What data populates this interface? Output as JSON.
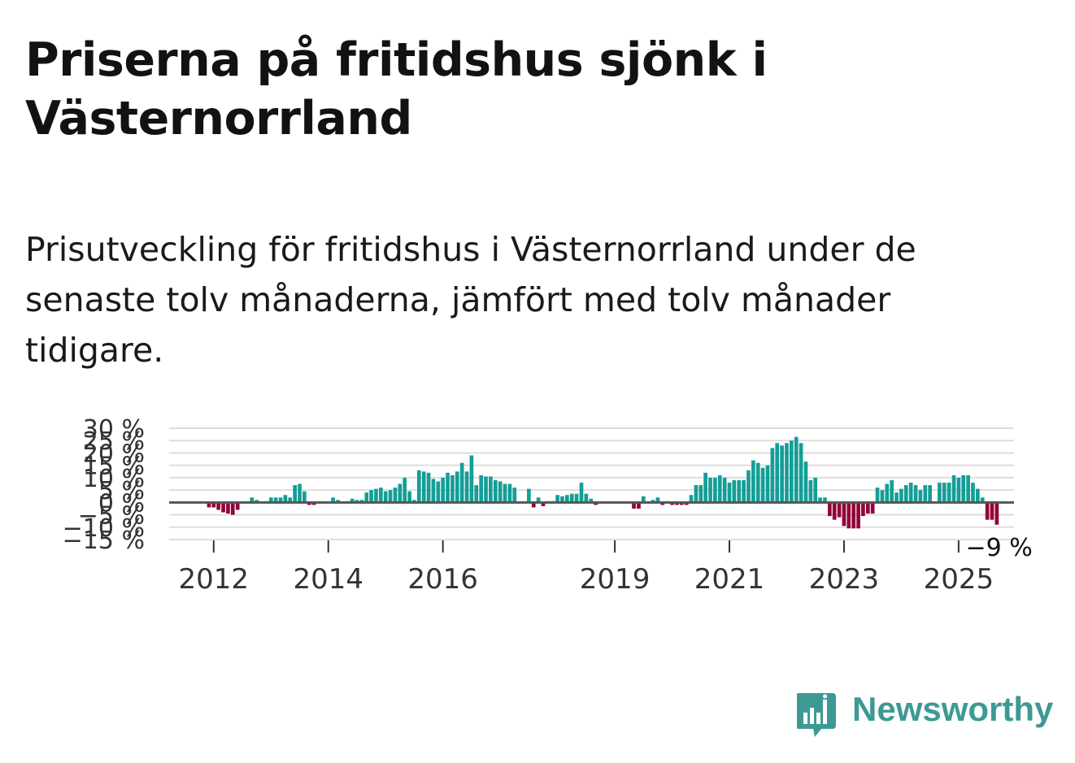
{
  "title": "Priserna på fritidshus sjönk i Västernorrland",
  "subtitle": "Prisutveckling för fritidshus i Västernorrland under de senaste tolv månaderna, jämfört med tolv månader tidigare.",
  "brand": {
    "name": "Newsworthy",
    "color": "#3d9a93",
    "icon": "bar-chart-logo-icon"
  },
  "colors": {
    "positive": "#149e96",
    "negative": "#93003a",
    "grid": "#dddddd",
    "zero_line": "#555555"
  },
  "chart_data": {
    "type": "bar",
    "title": "",
    "xlabel": "",
    "ylabel": "",
    "ylim": [
      -15,
      30
    ],
    "y_ticks": [
      "30 %",
      "25 %",
      "20 %",
      "15 %",
      "10 %",
      "5 %",
      "0 %",
      "−5 %",
      "−10 %",
      "−15 %"
    ],
    "y_tick_values": [
      30,
      25,
      20,
      15,
      10,
      5,
      0,
      -5,
      -10,
      -15
    ],
    "x_ticks": [
      "2012",
      "2014",
      "2016",
      "2019",
      "2021",
      "2023",
      "2025"
    ],
    "x_tick_values": [
      2012.0,
      2014.0,
      2016.0,
      2019.0,
      2021.0,
      2023.0,
      2025.0
    ],
    "x_start": 2011.0,
    "x_end": 2026.0,
    "grid": true,
    "last_label": "−9 %",
    "series": [
      {
        "values": [
          [
            2011.917,
            -2
          ],
          [
            2012.0,
            -2
          ],
          [
            2012.083,
            -3
          ],
          [
            2012.167,
            -4
          ],
          [
            2012.25,
            -4.5
          ],
          [
            2012.333,
            -5
          ],
          [
            2012.417,
            -3
          ],
          [
            2012.667,
            2
          ],
          [
            2012.75,
            1
          ],
          [
            2012.917,
            0.5
          ],
          [
            2013.0,
            2
          ],
          [
            2013.083,
            2
          ],
          [
            2013.167,
            2
          ],
          [
            2013.25,
            3
          ],
          [
            2013.333,
            2
          ],
          [
            2013.417,
            7
          ],
          [
            2013.5,
            7.5
          ],
          [
            2013.583,
            4.5
          ],
          [
            2013.667,
            -1
          ],
          [
            2013.75,
            -1
          ],
          [
            2014.0,
            0.5
          ],
          [
            2014.083,
            2
          ],
          [
            2014.167,
            1
          ],
          [
            2014.333,
            0.5
          ],
          [
            2014.417,
            1.5
          ],
          [
            2014.5,
            1
          ],
          [
            2014.583,
            1
          ],
          [
            2014.667,
            4
          ],
          [
            2014.75,
            5
          ],
          [
            2014.833,
            5.5
          ],
          [
            2014.917,
            6
          ],
          [
            2015.0,
            4.5
          ],
          [
            2015.083,
            5
          ],
          [
            2015.167,
            6
          ],
          [
            2015.25,
            7.5
          ],
          [
            2015.333,
            10
          ],
          [
            2015.417,
            4.5
          ],
          [
            2015.5,
            1
          ],
          [
            2015.583,
            13
          ],
          [
            2015.667,
            12.5
          ],
          [
            2015.75,
            12
          ],
          [
            2015.833,
            9.5
          ],
          [
            2015.917,
            8.5
          ],
          [
            2016.0,
            10
          ],
          [
            2016.083,
            12
          ],
          [
            2016.167,
            11
          ],
          [
            2016.25,
            12.5
          ],
          [
            2016.333,
            16
          ],
          [
            2016.417,
            12.5
          ],
          [
            2016.5,
            19
          ],
          [
            2016.583,
            7
          ],
          [
            2016.667,
            11
          ],
          [
            2016.75,
            10.5
          ],
          [
            2016.833,
            10.5
          ],
          [
            2016.917,
            9
          ],
          [
            2017.0,
            8.5
          ],
          [
            2017.083,
            7.5
          ],
          [
            2017.167,
            7.5
          ],
          [
            2017.25,
            6
          ],
          [
            2017.5,
            5.5
          ],
          [
            2017.583,
            -2
          ],
          [
            2017.667,
            2
          ],
          [
            2017.75,
            -1.5
          ],
          [
            2017.833,
            0.5
          ],
          [
            2017.917,
            0.5
          ],
          [
            2018.0,
            3
          ],
          [
            2018.083,
            2.5
          ],
          [
            2018.167,
            3
          ],
          [
            2018.25,
            3.5
          ],
          [
            2018.333,
            3.5
          ],
          [
            2018.417,
            8
          ],
          [
            2018.5,
            3.5
          ],
          [
            2018.583,
            1.5
          ],
          [
            2018.667,
            -1
          ],
          [
            2019.333,
            -2.5
          ],
          [
            2019.417,
            -2.5
          ],
          [
            2019.5,
            2.5
          ],
          [
            2019.667,
            1
          ],
          [
            2019.75,
            2
          ],
          [
            2019.833,
            -1
          ],
          [
            2019.917,
            0.5
          ],
          [
            2020.0,
            -1
          ],
          [
            2020.083,
            -1
          ],
          [
            2020.167,
            -1
          ],
          [
            2020.25,
            -1
          ],
          [
            2020.333,
            3
          ],
          [
            2020.417,
            7
          ],
          [
            2020.5,
            7
          ],
          [
            2020.583,
            12
          ],
          [
            2020.667,
            10
          ],
          [
            2020.75,
            10
          ],
          [
            2020.833,
            11
          ],
          [
            2020.917,
            10
          ],
          [
            2021.0,
            8
          ],
          [
            2021.083,
            9
          ],
          [
            2021.167,
            9
          ],
          [
            2021.25,
            9
          ],
          [
            2021.333,
            13
          ],
          [
            2021.417,
            17
          ],
          [
            2021.5,
            16
          ],
          [
            2021.583,
            14
          ],
          [
            2021.667,
            15
          ],
          [
            2021.75,
            22
          ],
          [
            2021.833,
            24
          ],
          [
            2021.917,
            23
          ],
          [
            2022.0,
            24
          ],
          [
            2022.083,
            25
          ],
          [
            2022.167,
            26.5
          ],
          [
            2022.25,
            24
          ],
          [
            2022.333,
            16.5
          ],
          [
            2022.417,
            9
          ],
          [
            2022.5,
            10
          ],
          [
            2022.583,
            2
          ],
          [
            2022.667,
            2
          ],
          [
            2022.75,
            -5.5
          ],
          [
            2022.833,
            -7
          ],
          [
            2022.917,
            -6
          ],
          [
            2023.0,
            -9.5
          ],
          [
            2023.083,
            -10.5
          ],
          [
            2023.167,
            -10.5
          ],
          [
            2023.25,
            -10.5
          ],
          [
            2023.333,
            -5.5
          ],
          [
            2023.417,
            -4.5
          ],
          [
            2023.5,
            -4.5
          ],
          [
            2023.583,
            6
          ],
          [
            2023.667,
            5
          ],
          [
            2023.75,
            7.5
          ],
          [
            2023.833,
            9
          ],
          [
            2023.917,
            4
          ],
          [
            2024.0,
            5.5
          ],
          [
            2024.083,
            7
          ],
          [
            2024.167,
            8
          ],
          [
            2024.25,
            7
          ],
          [
            2024.333,
            5
          ],
          [
            2024.417,
            7
          ],
          [
            2024.5,
            7
          ],
          [
            2024.667,
            8
          ],
          [
            2024.75,
            8
          ],
          [
            2024.833,
            8
          ],
          [
            2024.917,
            11
          ],
          [
            2025.0,
            10
          ],
          [
            2025.083,
            11
          ],
          [
            2025.167,
            11
          ],
          [
            2025.25,
            8
          ],
          [
            2025.333,
            5.5
          ],
          [
            2025.417,
            2
          ],
          [
            2025.5,
            -7
          ],
          [
            2025.583,
            -7
          ],
          [
            2025.667,
            -9
          ]
        ]
      }
    ]
  }
}
